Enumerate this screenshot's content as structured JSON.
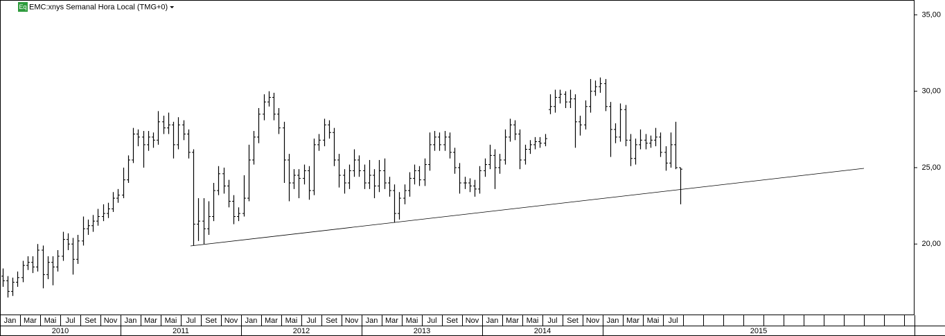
{
  "chart_data": {
    "type": "ohlc",
    "badge": "Eq",
    "title": "EMC:xnys Semanal Hora Local (TMG+0)",
    "color": "#000000",
    "ylim": [
      15.34,
      35.95
    ],
    "yticks": [
      {
        "value": 20,
        "label": "20,00"
      },
      {
        "value": 25,
        "label": "25,00"
      },
      {
        "value": 30,
        "label": "30,00"
      },
      {
        "value": 35,
        "label": "35,00"
      }
    ],
    "months": [
      "Jan",
      "Mar",
      "Mai",
      "Jul",
      "Set",
      "Nov",
      "Jan",
      "Mar",
      "Mai",
      "Jul",
      "Set",
      "Nov",
      "Jan",
      "Mar",
      "Mai",
      "Jul",
      "Set",
      "Nov",
      "Jan",
      "Mar",
      "Mai",
      "Jul",
      "Set",
      "Nov",
      "Jan",
      "Mar",
      "Mai",
      "Jul",
      "Set",
      "Nov",
      "Jan",
      "Mar",
      "Mai",
      "Jul"
    ],
    "years": [
      "2010",
      "2011",
      "2012",
      "2013",
      "2014",
      "2015"
    ],
    "open": [
      17.9,
      17.6,
      16.9,
      17.5,
      17.8,
      18.6,
      18.8,
      18.5,
      19.6,
      18.0,
      18.8,
      18.5,
      19.2,
      20.3,
      20.0,
      19.0,
      20.2,
      21.0,
      21.2,
      21.5,
      21.8,
      22.0,
      22.3,
      23.0,
      23.2,
      24.2,
      25.5,
      27.2,
      27.0,
      26.5,
      27.0,
      26.8,
      28.0,
      27.6,
      27.8,
      26.5,
      27.8,
      27.2,
      26.0,
      21.3,
      21.5,
      21.0,
      21.8,
      23.5,
      24.6,
      23.8,
      22.8,
      21.8,
      22.0,
      23.0,
      25.5,
      27.0,
      28.5,
      29.3,
      29.6,
      28.5,
      27.6,
      25.5,
      24.0,
      24.5,
      24.3,
      24.8,
      23.5,
      26.5,
      26.8,
      27.8,
      27.3,
      25.5,
      24.5,
      24.0,
      24.8,
      25.5,
      24.8,
      24.0,
      24.5,
      23.8,
      24.8,
      24.0,
      23.5,
      22.0,
      23.0,
      23.5,
      24.3,
      24.8,
      24.2,
      25.2,
      26.5,
      27.0,
      26.5,
      27.0,
      26.0,
      25.0,
      24.0,
      24.0,
      23.8,
      23.6,
      24.8,
      25.2,
      25.8,
      25.0,
      25.5,
      27.0,
      27.8,
      27.2,
      25.5,
      26.2,
      26.5,
      26.7,
      26.6,
      28.8,
      29.0,
      29.6,
      29.8,
      29.3,
      29.5,
      28.0,
      27.8,
      29.0,
      30.0,
      30.3,
      30.5,
      29.0,
      27.5,
      27.0,
      28.8,
      26.8,
      25.6,
      26.5,
      26.8,
      26.6,
      26.8,
      27.0,
      26.0,
      25.3,
      26.5,
      25.0
    ],
    "high": [
      18.4,
      17.9,
      17.8,
      18.2,
      18.9,
      19.2,
      19.2,
      20.0,
      19.9,
      19.2,
      19.2,
      19.6,
      20.8,
      20.7,
      20.4,
      20.6,
      21.8,
      21.6,
      21.9,
      22.3,
      22.6,
      22.7,
      23.4,
      23.6,
      25.0,
      25.8,
      27.6,
      27.5,
      27.4,
      27.4,
      27.3,
      28.7,
      28.4,
      28.6,
      28.0,
      28.3,
      28.1,
      27.5,
      26.2,
      23.0,
      23.0,
      22.8,
      24.0,
      25.1,
      25.0,
      24.2,
      23.2,
      22.4,
      24.5,
      26.5,
      27.4,
      28.9,
      29.8,
      30.0,
      29.9,
      28.9,
      28.0,
      25.9,
      24.9,
      24.9,
      25.2,
      25.1,
      26.9,
      27.2,
      28.2,
      28.1,
      27.6,
      25.9,
      24.9,
      25.2,
      26.2,
      25.8,
      25.2,
      25.5,
      24.9,
      25.5,
      25.6,
      24.4,
      23.9,
      23.4,
      23.9,
      24.7,
      25.2,
      25.1,
      25.6,
      27.3,
      27.4,
      27.3,
      27.4,
      27.3,
      26.3,
      25.3,
      24.4,
      24.3,
      24.2,
      25.1,
      25.6,
      26.5,
      26.2,
      25.9,
      27.5,
      28.2,
      28.1,
      27.5,
      26.5,
      26.8,
      27.0,
      27.0,
      27.2,
      29.8,
      30.1,
      30.1,
      30.0,
      30.1,
      29.8,
      28.4,
      29.4,
      30.8,
      30.7,
      30.9,
      30.8,
      29.3,
      27.9,
      29.2,
      29.1,
      27.2,
      26.9,
      27.5,
      27.2,
      27.1,
      27.6,
      27.3,
      26.4,
      27.3,
      28.0,
      25.0
    ],
    "low": [
      17.2,
      16.5,
      16.6,
      17.2,
      17.5,
      18.3,
      18.1,
      18.2,
      17.1,
      17.7,
      17.3,
      18.2,
      18.9,
      19.6,
      18.0,
      18.7,
      19.9,
      20.6,
      20.8,
      21.2,
      21.5,
      21.7,
      22.1,
      22.7,
      23.0,
      24.0,
      25.3,
      26.4,
      25.0,
      26.1,
      26.3,
      26.5,
      27.2,
      27.2,
      25.6,
      26.2,
      26.8,
      25.6,
      19.9,
      20.2,
      20.0,
      20.6,
      21.5,
      23.2,
      23.3,
      22.4,
      21.3,
      21.5,
      21.8,
      22.8,
      25.2,
      26.6,
      28.1,
      29.0,
      28.1,
      27.2,
      24.0,
      22.8,
      23.6,
      23.0,
      23.9,
      22.9,
      23.2,
      26.1,
      26.4,
      26.9,
      25.1,
      23.7,
      23.3,
      23.6,
      24.4,
      24.4,
      23.6,
      23.6,
      23.0,
      23.4,
      23.6,
      23.1,
      21.4,
      21.6,
      22.6,
      23.1,
      23.9,
      23.8,
      23.8,
      24.8,
      26.1,
      26.1,
      26.1,
      25.6,
      24.6,
      23.3,
      23.6,
      23.4,
      23.1,
      23.3,
      24.4,
      24.9,
      23.6,
      24.6,
      25.2,
      26.7,
      26.8,
      24.9,
      25.2,
      25.9,
      26.2,
      26.3,
      26.4,
      28.5,
      28.6,
      29.2,
      28.9,
      28.9,
      26.3,
      27.1,
      27.5,
      28.6,
      29.7,
      29.9,
      28.7,
      25.7,
      26.6,
      26.7,
      26.4,
      25.1,
      25.2,
      26.2,
      26.2,
      26.3,
      26.4,
      25.7,
      24.8,
      25.0,
      24.9,
      22.6
    ],
    "close": [
      17.6,
      16.9,
      17.5,
      17.8,
      18.6,
      18.8,
      18.5,
      19.6,
      18.0,
      18.8,
      18.5,
      19.2,
      20.3,
      20.0,
      19.0,
      20.2,
      21.0,
      21.2,
      21.5,
      21.8,
      22.0,
      22.3,
      23.0,
      23.2,
      24.2,
      25.5,
      27.2,
      27.0,
      26.5,
      27.0,
      26.8,
      28.0,
      27.6,
      27.8,
      26.5,
      27.8,
      27.2,
      26.0,
      21.3,
      21.5,
      21.0,
      21.8,
      23.5,
      24.6,
      23.8,
      22.8,
      21.8,
      22.0,
      23.0,
      25.5,
      27.0,
      28.5,
      29.3,
      29.6,
      28.5,
      27.6,
      25.5,
      24.0,
      24.5,
      24.3,
      24.8,
      23.5,
      26.5,
      26.8,
      27.8,
      27.3,
      25.5,
      24.5,
      24.0,
      24.8,
      25.5,
      24.8,
      24.0,
      24.5,
      23.8,
      24.8,
      24.0,
      23.5,
      22.0,
      23.0,
      23.5,
      24.3,
      24.8,
      24.2,
      25.2,
      26.5,
      27.0,
      26.5,
      27.0,
      26.0,
      25.0,
      24.0,
      24.0,
      23.8,
      23.6,
      24.8,
      25.2,
      25.8,
      25.0,
      25.5,
      27.0,
      27.8,
      27.2,
      25.5,
      26.2,
      26.5,
      26.7,
      26.6,
      26.9,
      29.0,
      29.6,
      29.8,
      29.3,
      29.5,
      28.0,
      27.8,
      29.0,
      30.0,
      30.3,
      30.5,
      29.0,
      27.5,
      27.0,
      28.8,
      26.8,
      25.6,
      26.5,
      26.8,
      26.6,
      26.8,
      27.0,
      26.0,
      25.3,
      26.5,
      25.0,
      24.9
    ]
  }
}
